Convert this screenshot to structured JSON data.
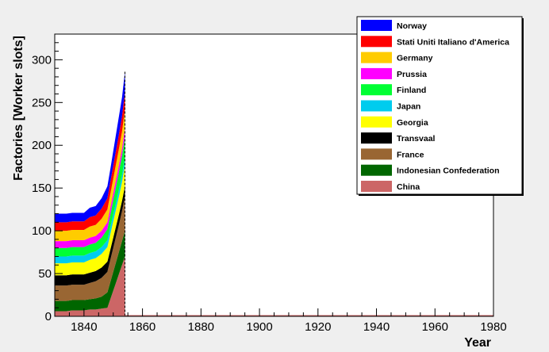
{
  "chart_data": {
    "type": "area",
    "stacked": true,
    "xlabel": "Year",
    "ylabel": "Factories [Worker slots]",
    "xlim": [
      1830,
      1980
    ],
    "ylim": [
      0,
      330
    ],
    "x_ticks": [
      1840,
      1860,
      1880,
      1900,
      1920,
      1940,
      1960,
      1980
    ],
    "y_ticks": [
      0,
      50,
      100,
      150,
      200,
      250,
      300
    ],
    "legend_position": "top-right",
    "x": [
      1830,
      1832,
      1834,
      1836,
      1838,
      1840,
      1842,
      1844,
      1846,
      1848,
      1849,
      1850,
      1851,
      1852,
      1853,
      1854
    ],
    "series": [
      {
        "name": "China",
        "color": "#cc6666",
        "values": [
          6,
          6,
          6,
          7,
          7,
          7,
          8,
          8,
          9,
          10,
          20,
          30,
          40,
          50,
          60,
          70
        ]
      },
      {
        "name": "Indonesian Confederation",
        "color": "#006600",
        "values": [
          12,
          12,
          12,
          12,
          12,
          12,
          12,
          13,
          14,
          18,
          20,
          22,
          24,
          26,
          28,
          30
        ]
      },
      {
        "name": "France",
        "color": "#996633",
        "values": [
          18,
          18,
          18,
          18,
          18,
          18,
          19,
          20,
          22,
          24,
          26,
          28,
          30,
          32,
          35,
          40
        ]
      },
      {
        "name": "Transvaal",
        "color": "#000000",
        "values": [
          12,
          12,
          12,
          12,
          12,
          12,
          12,
          12,
          12,
          12,
          12,
          12,
          12,
          12,
          12,
          12
        ]
      },
      {
        "name": "Georgia",
        "color": "#ffff00",
        "values": [
          14,
          14,
          14,
          14,
          14,
          14,
          15,
          15,
          16,
          17,
          18,
          19,
          20,
          21,
          22,
          25
        ]
      },
      {
        "name": "Japan",
        "color": "#00ccee",
        "values": [
          8,
          8,
          8,
          8,
          8,
          8,
          8,
          8,
          8,
          8,
          8,
          8,
          8,
          8,
          8,
          8
        ]
      },
      {
        "name": "Finland",
        "color": "#00ff33",
        "values": [
          10,
          10,
          10,
          10,
          10,
          10,
          10,
          10,
          11,
          13,
          15,
          17,
          19,
          21,
          23,
          25
        ]
      },
      {
        "name": "Prussia",
        "color": "#ff00ff",
        "values": [
          8,
          8,
          8,
          8,
          8,
          8,
          8,
          8,
          8,
          8,
          8,
          8,
          8,
          8,
          8,
          10
        ]
      },
      {
        "name": "Germany",
        "color": "#ffcc00",
        "values": [
          12,
          12,
          12,
          12,
          12,
          12,
          13,
          13,
          14,
          15,
          16,
          17,
          18,
          19,
          20,
          22
        ]
      },
      {
        "name": "Stati Uniti Italiano d'America",
        "color": "#ff0000",
        "values": [
          10,
          10,
          10,
          10,
          10,
          10,
          11,
          11,
          12,
          13,
          14,
          15,
          16,
          17,
          18,
          20
        ]
      },
      {
        "name": "Norway",
        "color": "#0000ff",
        "values": [
          10,
          10,
          10,
          10,
          10,
          10,
          11,
          11,
          12,
          14,
          15,
          17,
          19,
          21,
          22,
          24
        ]
      }
    ]
  }
}
